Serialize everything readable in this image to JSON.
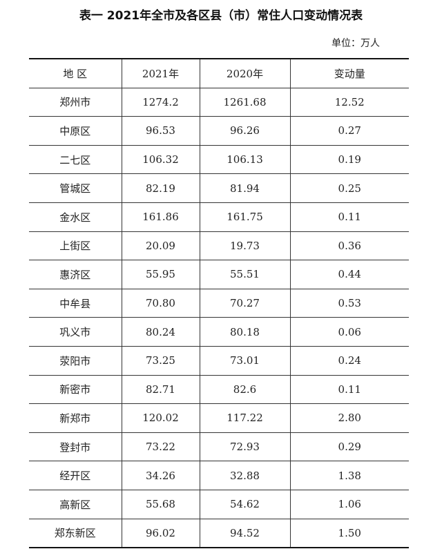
{
  "title": "表一  2021年全市及各区县（市）常住人口变动情况表",
  "unit": "单位：万人",
  "columns": [
    "地 区",
    "2021年",
    "2020年",
    "变动量"
  ],
  "rows": [
    [
      "郑州市",
      "1274.2",
      "1261.68",
      "12.52"
    ],
    [
      "中原区",
      "96.53",
      "96.26",
      "0.27"
    ],
    [
      "二七区",
      "106.32",
      "106.13",
      "0.19"
    ],
    [
      "管城区",
      "82.19",
      "81.94",
      "0.25"
    ],
    [
      "金水区",
      "161.86",
      "161.75",
      "0.11"
    ],
    [
      "上街区",
      "20.09",
      "19.73",
      "0.36"
    ],
    [
      "惠济区",
      "55.95",
      "55.51",
      "0.44"
    ],
    [
      "中牟县",
      "70.80",
      "70.27",
      "0.53"
    ],
    [
      "巩义市",
      "80.24",
      "80.18",
      "0.06"
    ],
    [
      "荥阳市",
      "73.25",
      "73.01",
      "0.24"
    ],
    [
      "新密市",
      "82.71",
      "82.6",
      "0.11"
    ],
    [
      "新郑市",
      "120.02",
      "117.22",
      "2.80"
    ],
    [
      "登封市",
      "73.22",
      "72.93",
      "0.29"
    ],
    [
      "经开区",
      "34.26",
      "32.88",
      "1.38"
    ],
    [
      "高新区",
      "55.68",
      "54.62",
      "1.06"
    ],
    [
      "郑东新区",
      "96.02",
      "94.52",
      "1.50"
    ]
  ]
}
